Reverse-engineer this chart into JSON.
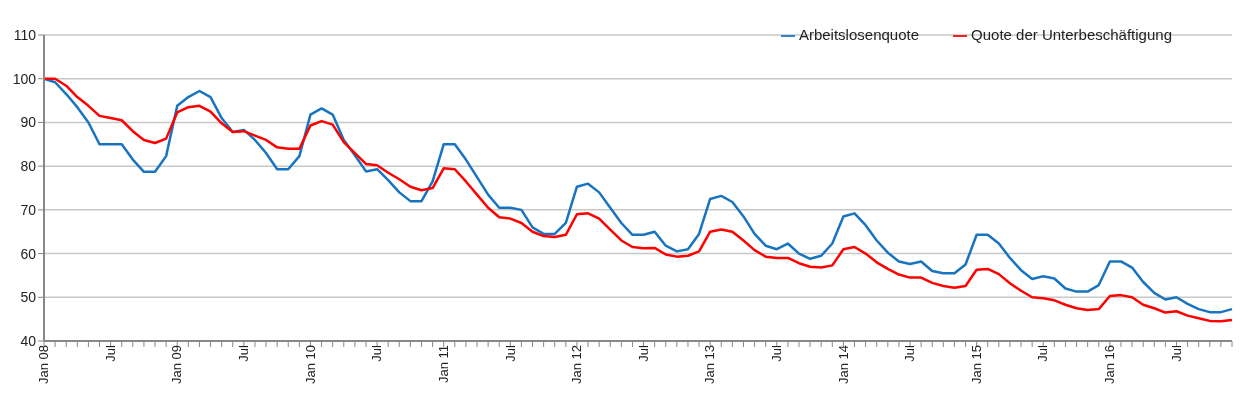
{
  "chart_data": {
    "type": "line",
    "categories": [
      "Jan 08",
      null,
      null,
      null,
      null,
      null,
      "Jul",
      null,
      null,
      null,
      null,
      null,
      "Jan 09",
      null,
      null,
      null,
      null,
      null,
      "Jul",
      null,
      null,
      null,
      null,
      null,
      "Jan 10",
      null,
      null,
      null,
      null,
      null,
      "Jul",
      null,
      null,
      null,
      null,
      null,
      "Jan 11",
      null,
      null,
      null,
      null,
      null,
      "Jul",
      null,
      null,
      null,
      null,
      null,
      "Jan 12",
      null,
      null,
      null,
      null,
      null,
      "Jul",
      null,
      null,
      null,
      null,
      null,
      "Jan 13",
      null,
      null,
      null,
      null,
      null,
      "Jul",
      null,
      null,
      null,
      null,
      null,
      "Jan 14",
      null,
      null,
      null,
      null,
      null,
      "Jul",
      null,
      null,
      null,
      null,
      null,
      "Jan 15",
      null,
      null,
      null,
      null,
      null,
      "Jul",
      null,
      null,
      null,
      null,
      null,
      "Jan 16",
      null,
      null,
      null,
      null,
      null,
      "Jul",
      null,
      null,
      null,
      null,
      null
    ],
    "series": [
      {
        "name": "Arbeitslosenquote",
        "color": "#1874c1",
        "values": [
          100,
          99.2,
          96.5,
          93.5,
          90,
          85,
          85,
          85,
          81.5,
          78.7,
          78.7,
          82.3,
          93.8,
          95.8,
          97.2,
          95.8,
          91,
          87.8,
          88.3,
          86,
          83,
          79.3,
          79.3,
          82.3,
          91.8,
          93.2,
          91.8,
          86,
          82.5,
          78.8,
          79.3,
          76.8,
          74,
          72,
          72,
          76.5,
          85,
          85,
          81.5,
          77.5,
          73.5,
          70.5,
          70.5,
          70,
          66,
          64.5,
          64.5,
          67,
          75.3,
          76,
          74,
          70.5,
          67,
          64.3,
          64.3,
          65,
          61.8,
          60.5,
          61,
          64.5,
          72.5,
          73.2,
          71.8,
          68.5,
          64.5,
          61.8,
          61,
          62.3,
          60,
          58.8,
          59.5,
          62.3,
          68.5,
          69.2,
          66.5,
          63,
          60.2,
          58.2,
          57.6,
          58.2,
          56,
          55.5,
          55.5,
          57.5,
          64.3,
          64.3,
          62.3,
          59,
          56.2,
          54.2,
          54.8,
          54.3,
          52,
          51.3,
          51.3,
          52.8,
          58.2,
          58.2,
          56.8,
          53.5,
          51,
          49.5,
          50,
          48.5,
          47.3,
          46.6,
          46.6,
          47.3
        ]
      },
      {
        "name": "Quote der Unterbeschäftigung",
        "color": "#ff0000",
        "values": [
          100,
          100,
          98.4,
          95.8,
          93.8,
          91.5,
          91,
          90.5,
          88,
          86,
          85.3,
          86.3,
          92.3,
          93.5,
          93.8,
          92.5,
          89.8,
          87.8,
          88,
          87,
          86,
          84.3,
          84,
          84,
          89.3,
          90.3,
          89.5,
          85.5,
          83,
          80.5,
          80.2,
          78.5,
          77,
          75.3,
          74.5,
          75,
          79.5,
          79.3,
          76.5,
          73.5,
          70.5,
          68.3,
          68,
          67,
          65,
          64,
          63.8,
          64.3,
          69,
          69.2,
          68,
          65.5,
          63,
          61.5,
          61.2,
          61.3,
          59.8,
          59.3,
          59.5,
          60.5,
          65,
          65.5,
          65,
          63,
          60.8,
          59.3,
          59,
          59,
          57.8,
          57,
          56.8,
          57.3,
          61,
          61.5,
          60,
          58,
          56.5,
          55.2,
          54.5,
          54.5,
          53.3,
          52.6,
          52.2,
          52.6,
          56.3,
          56.5,
          55.3,
          53.2,
          51.5,
          50,
          49.8,
          49.3,
          48.3,
          47.5,
          47.1,
          47.3,
          50.3,
          50.5,
          50,
          48.3,
          47.5,
          46.5,
          46.8,
          45.8,
          45.2,
          44.6,
          44.5,
          44.8
        ]
      }
    ],
    "ylim": [
      40,
      110
    ],
    "yticks": [
      40,
      50,
      60,
      70,
      80,
      90,
      100,
      110
    ],
    "grid": "y",
    "legend": "top right",
    "marker": "none",
    "line_style": "solid"
  }
}
